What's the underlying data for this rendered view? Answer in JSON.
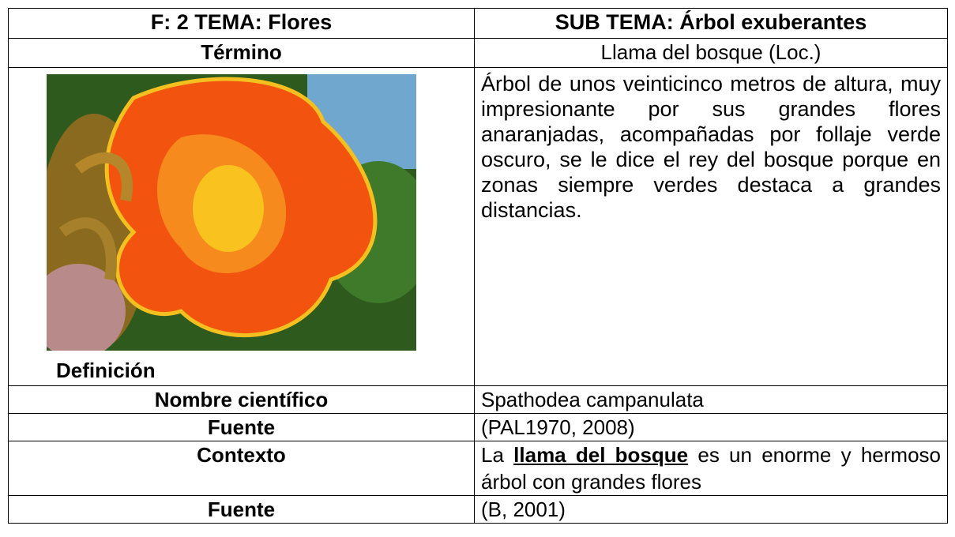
{
  "header": {
    "left": "F: 2  TEMA: Flores",
    "right": "SUB TEMA: Árbol exuberantes"
  },
  "rows": [
    {
      "label": "Término",
      "value": "Llama del bosque (Loc.)"
    },
    {
      "label": "Definición",
      "value": "Árbol de unos veinticinco metros de altura, muy impresionante por sus grandes flores anaranjadas, acompañadas por follaje verde oscuro, se le dice el rey del bosque porque en zonas siempre verdes destaca a grandes distancias."
    },
    {
      "label": "Nombre científico",
      "value": "Spathodea campanulata"
    },
    {
      "label": "Fuente",
      "value": "(PAL1970, 2008)"
    },
    {
      "label": "Contexto",
      "value": {
        "before": "La ",
        "term": "llama del bosque",
        "after": " es un enorme y hermoso árbol con grandes flores"
      }
    },
    {
      "label": "Fuente",
      "value": "(B, 2001)"
    }
  ]
}
